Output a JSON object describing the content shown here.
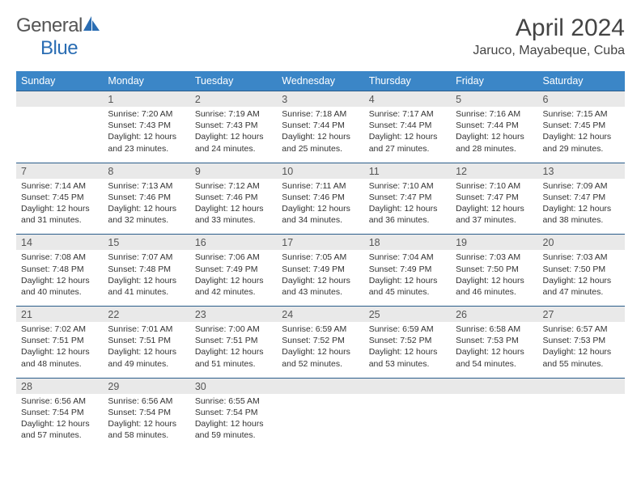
{
  "logo": {
    "text_general": "General",
    "text_blue": "Blue",
    "icon_name": "sail-icon",
    "icon_color": "#2a6db3"
  },
  "title": "April 2024",
  "location": "Jaruco, Mayabeque, Cuba",
  "colors": {
    "header_bg": "#3b86c7",
    "header_text": "#ffffff",
    "daynum_bg": "#e9e9e9",
    "rule": "#2a5d8a",
    "body_text": "#333333",
    "title_text": "#444444"
  },
  "weekdays": [
    "Sunday",
    "Monday",
    "Tuesday",
    "Wednesday",
    "Thursday",
    "Friday",
    "Saturday"
  ],
  "weeks": [
    [
      {
        "n": "",
        "sunrise": "",
        "sunset": "",
        "daylight": ""
      },
      {
        "n": "1",
        "sunrise": "Sunrise: 7:20 AM",
        "sunset": "Sunset: 7:43 PM",
        "daylight": "Daylight: 12 hours and 23 minutes."
      },
      {
        "n": "2",
        "sunrise": "Sunrise: 7:19 AM",
        "sunset": "Sunset: 7:43 PM",
        "daylight": "Daylight: 12 hours and 24 minutes."
      },
      {
        "n": "3",
        "sunrise": "Sunrise: 7:18 AM",
        "sunset": "Sunset: 7:44 PM",
        "daylight": "Daylight: 12 hours and 25 minutes."
      },
      {
        "n": "4",
        "sunrise": "Sunrise: 7:17 AM",
        "sunset": "Sunset: 7:44 PM",
        "daylight": "Daylight: 12 hours and 27 minutes."
      },
      {
        "n": "5",
        "sunrise": "Sunrise: 7:16 AM",
        "sunset": "Sunset: 7:44 PM",
        "daylight": "Daylight: 12 hours and 28 minutes."
      },
      {
        "n": "6",
        "sunrise": "Sunrise: 7:15 AM",
        "sunset": "Sunset: 7:45 PM",
        "daylight": "Daylight: 12 hours and 29 minutes."
      }
    ],
    [
      {
        "n": "7",
        "sunrise": "Sunrise: 7:14 AM",
        "sunset": "Sunset: 7:45 PM",
        "daylight": "Daylight: 12 hours and 31 minutes."
      },
      {
        "n": "8",
        "sunrise": "Sunrise: 7:13 AM",
        "sunset": "Sunset: 7:46 PM",
        "daylight": "Daylight: 12 hours and 32 minutes."
      },
      {
        "n": "9",
        "sunrise": "Sunrise: 7:12 AM",
        "sunset": "Sunset: 7:46 PM",
        "daylight": "Daylight: 12 hours and 33 minutes."
      },
      {
        "n": "10",
        "sunrise": "Sunrise: 7:11 AM",
        "sunset": "Sunset: 7:46 PM",
        "daylight": "Daylight: 12 hours and 34 minutes."
      },
      {
        "n": "11",
        "sunrise": "Sunrise: 7:10 AM",
        "sunset": "Sunset: 7:47 PM",
        "daylight": "Daylight: 12 hours and 36 minutes."
      },
      {
        "n": "12",
        "sunrise": "Sunrise: 7:10 AM",
        "sunset": "Sunset: 7:47 PM",
        "daylight": "Daylight: 12 hours and 37 minutes."
      },
      {
        "n": "13",
        "sunrise": "Sunrise: 7:09 AM",
        "sunset": "Sunset: 7:47 PM",
        "daylight": "Daylight: 12 hours and 38 minutes."
      }
    ],
    [
      {
        "n": "14",
        "sunrise": "Sunrise: 7:08 AM",
        "sunset": "Sunset: 7:48 PM",
        "daylight": "Daylight: 12 hours and 40 minutes."
      },
      {
        "n": "15",
        "sunrise": "Sunrise: 7:07 AM",
        "sunset": "Sunset: 7:48 PM",
        "daylight": "Daylight: 12 hours and 41 minutes."
      },
      {
        "n": "16",
        "sunrise": "Sunrise: 7:06 AM",
        "sunset": "Sunset: 7:49 PM",
        "daylight": "Daylight: 12 hours and 42 minutes."
      },
      {
        "n": "17",
        "sunrise": "Sunrise: 7:05 AM",
        "sunset": "Sunset: 7:49 PM",
        "daylight": "Daylight: 12 hours and 43 minutes."
      },
      {
        "n": "18",
        "sunrise": "Sunrise: 7:04 AM",
        "sunset": "Sunset: 7:49 PM",
        "daylight": "Daylight: 12 hours and 45 minutes."
      },
      {
        "n": "19",
        "sunrise": "Sunrise: 7:03 AM",
        "sunset": "Sunset: 7:50 PM",
        "daylight": "Daylight: 12 hours and 46 minutes."
      },
      {
        "n": "20",
        "sunrise": "Sunrise: 7:03 AM",
        "sunset": "Sunset: 7:50 PM",
        "daylight": "Daylight: 12 hours and 47 minutes."
      }
    ],
    [
      {
        "n": "21",
        "sunrise": "Sunrise: 7:02 AM",
        "sunset": "Sunset: 7:51 PM",
        "daylight": "Daylight: 12 hours and 48 minutes."
      },
      {
        "n": "22",
        "sunrise": "Sunrise: 7:01 AM",
        "sunset": "Sunset: 7:51 PM",
        "daylight": "Daylight: 12 hours and 49 minutes."
      },
      {
        "n": "23",
        "sunrise": "Sunrise: 7:00 AM",
        "sunset": "Sunset: 7:51 PM",
        "daylight": "Daylight: 12 hours and 51 minutes."
      },
      {
        "n": "24",
        "sunrise": "Sunrise: 6:59 AM",
        "sunset": "Sunset: 7:52 PM",
        "daylight": "Daylight: 12 hours and 52 minutes."
      },
      {
        "n": "25",
        "sunrise": "Sunrise: 6:59 AM",
        "sunset": "Sunset: 7:52 PM",
        "daylight": "Daylight: 12 hours and 53 minutes."
      },
      {
        "n": "26",
        "sunrise": "Sunrise: 6:58 AM",
        "sunset": "Sunset: 7:53 PM",
        "daylight": "Daylight: 12 hours and 54 minutes."
      },
      {
        "n": "27",
        "sunrise": "Sunrise: 6:57 AM",
        "sunset": "Sunset: 7:53 PM",
        "daylight": "Daylight: 12 hours and 55 minutes."
      }
    ],
    [
      {
        "n": "28",
        "sunrise": "Sunrise: 6:56 AM",
        "sunset": "Sunset: 7:54 PM",
        "daylight": "Daylight: 12 hours and 57 minutes."
      },
      {
        "n": "29",
        "sunrise": "Sunrise: 6:56 AM",
        "sunset": "Sunset: 7:54 PM",
        "daylight": "Daylight: 12 hours and 58 minutes."
      },
      {
        "n": "30",
        "sunrise": "Sunrise: 6:55 AM",
        "sunset": "Sunset: 7:54 PM",
        "daylight": "Daylight: 12 hours and 59 minutes."
      },
      {
        "n": "",
        "sunrise": "",
        "sunset": "",
        "daylight": ""
      },
      {
        "n": "",
        "sunrise": "",
        "sunset": "",
        "daylight": ""
      },
      {
        "n": "",
        "sunrise": "",
        "sunset": "",
        "daylight": ""
      },
      {
        "n": "",
        "sunrise": "",
        "sunset": "",
        "daylight": ""
      }
    ]
  ]
}
